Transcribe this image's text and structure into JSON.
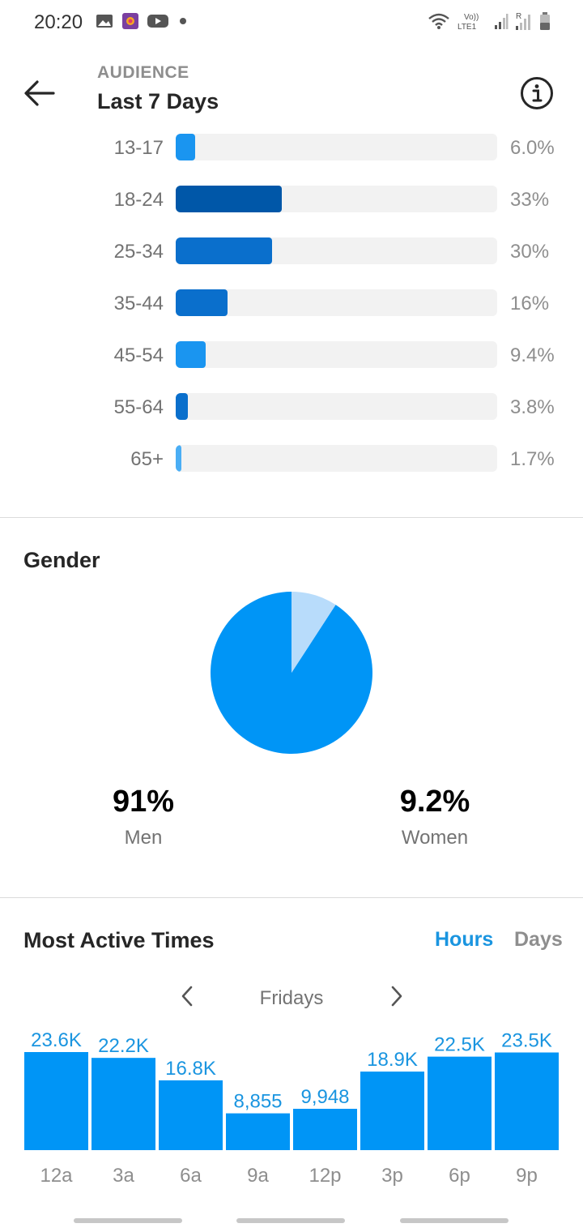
{
  "status_bar": {
    "time": "20:20",
    "left_icons": [
      "image-icon",
      "app-icon",
      "youtube-icon"
    ],
    "right_icons": [
      "wifi-icon",
      "volte-icon",
      "signal-icon",
      "signal-roaming-icon",
      "battery-icon"
    ],
    "volte_text": "Vo)) LTE1",
    "roaming_text": "R"
  },
  "header": {
    "section": "AUDIENCE",
    "title": "Last 7 Days"
  },
  "age": {
    "rows": [
      {
        "label": "13-17",
        "pct": "6.0%",
        "value": 6.0,
        "color": "#1a95f0"
      },
      {
        "label": "18-24",
        "pct": "33%",
        "value": 33,
        "color": "#0057a8"
      },
      {
        "label": "25-34",
        "pct": "30%",
        "value": 30,
        "color": "#0a6fcc"
      },
      {
        "label": "35-44",
        "pct": "16%",
        "value": 16,
        "color": "#0a6fcc"
      },
      {
        "label": "45-54",
        "pct": "9.4%",
        "value": 9.4,
        "color": "#1a95f0"
      },
      {
        "label": "55-64",
        "pct": "3.8%",
        "value": 3.8,
        "color": "#0a6fcc"
      },
      {
        "label": "65+",
        "pct": "1.7%",
        "value": 1.7,
        "color": "#4aaef5"
      }
    ]
  },
  "gender": {
    "title": "Gender",
    "men_value": "91%",
    "men_label": "Men",
    "women_value": "9.2%",
    "women_label": "Women",
    "pie": {
      "men": 91,
      "women": 9.2,
      "men_color": "#0095f6",
      "women_color": "#b8dcfb"
    }
  },
  "active_times": {
    "title": "Most Active Times",
    "tab_hours": "Hours",
    "tab_days": "Days",
    "day_label": "Fridays"
  },
  "chart_data": {
    "type": "bar",
    "categories": [
      "12a",
      "3a",
      "6a",
      "9a",
      "12p",
      "3p",
      "6p",
      "9p"
    ],
    "values": [
      23600,
      22200,
      16800,
      8855,
      9948,
      18900,
      22500,
      23500
    ],
    "labels": [
      "23.6K",
      "22.2K",
      "16.8K",
      "8,855",
      "9,948",
      "18.9K",
      "22.5K",
      "23.5K"
    ],
    "color": "#0095f6",
    "label_color": "#1a95e0"
  }
}
